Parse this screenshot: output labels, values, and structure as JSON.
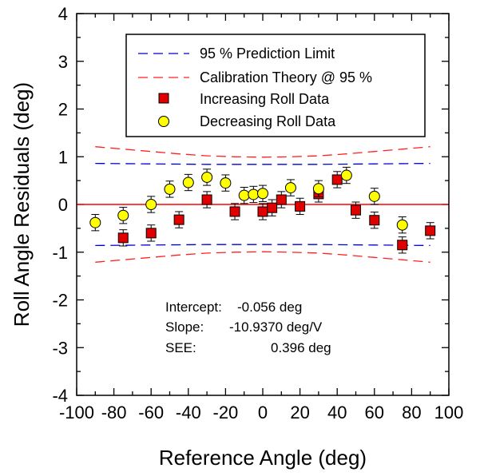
{
  "chart_data": {
    "type": "scatter",
    "xlabel": "Reference Angle (deg)",
    "ylabel": "Roll Angle Residuals (deg)",
    "xlim": [
      -100,
      100
    ],
    "ylim": [
      -4,
      4
    ],
    "x_ticks": [
      -100,
      -80,
      -60,
      -40,
      -20,
      0,
      20,
      40,
      60,
      80,
      100
    ],
    "y_ticks": [
      -4,
      -3,
      -2,
      -1,
      0,
      1,
      2,
      3,
      4
    ],
    "x_tick_labels": [
      "-100",
      "-80",
      "-60",
      "-40",
      "-20",
      "0",
      "20",
      "40",
      "60",
      "80",
      "100"
    ],
    "y_tick_labels": [
      "-4",
      "-3",
      "-2",
      "-1",
      "0",
      "1",
      "2",
      "3",
      "4"
    ],
    "grid": false,
    "legend_position": "top-center",
    "series": [
      {
        "name": "95 % Prediction Limit",
        "kind": "dashed-line",
        "color": "#0000cc",
        "x": [
          -90,
          -60,
          -30,
          0,
          30,
          60,
          90
        ],
        "upper": [
          0.86,
          0.85,
          0.84,
          0.84,
          0.84,
          0.85,
          0.86
        ],
        "lower": [
          -0.86,
          -0.85,
          -0.84,
          -0.84,
          -0.84,
          -0.85,
          -0.86
        ]
      },
      {
        "name": "Calibration Theory @ 95 %",
        "kind": "dashed-line",
        "color": "#ff2020",
        "x": [
          -90,
          -75,
          -60,
          -45,
          -30,
          -15,
          0,
          15,
          30,
          45,
          60,
          75,
          90
        ],
        "upper": [
          1.21,
          1.16,
          1.11,
          1.06,
          1.02,
          1.0,
          0.99,
          1.0,
          1.02,
          1.06,
          1.11,
          1.16,
          1.21
        ],
        "lower": [
          -1.21,
          -1.16,
          -1.11,
          -1.06,
          -1.02,
          -1.0,
          -0.99,
          -1.0,
          -1.02,
          -1.06,
          -1.11,
          -1.16,
          -1.21
        ]
      },
      {
        "name": "Increasing Roll Data",
        "kind": "square",
        "color": "#e00000",
        "error": 0.17,
        "x": [
          -75,
          -60,
          -45,
          -30,
          -15,
          0,
          5,
          10,
          20,
          30,
          40,
          50,
          60,
          75,
          90
        ],
        "y": [
          -0.7,
          -0.6,
          -0.32,
          0.1,
          -0.15,
          -0.15,
          -0.07,
          0.1,
          -0.04,
          0.22,
          0.52,
          -0.12,
          -0.33,
          -0.85,
          -0.55
        ]
      },
      {
        "name": "Decreasing Roll Data",
        "kind": "circle",
        "color": "#ffff00",
        "error": 0.17,
        "x": [
          -90,
          -75,
          -60,
          -50,
          -40,
          -30,
          -20,
          -10,
          -5,
          0,
          15,
          30,
          45,
          60,
          75
        ],
        "y": [
          -0.38,
          -0.23,
          0.0,
          0.32,
          0.46,
          0.57,
          0.45,
          0.19,
          0.21,
          0.23,
          0.35,
          0.33,
          0.61,
          0.17,
          -0.43
        ]
      },
      {
        "name": "",
        "kind": "zero-line",
        "color": "#ff0000",
        "y": 0
      }
    ],
    "annotations": [
      {
        "label": "Intercept:",
        "value": "-0.056 deg"
      },
      {
        "label": "Slope:",
        "value": "-10.9370 deg/V"
      },
      {
        "label": "SEE:",
        "value": "0.396 deg"
      }
    ]
  }
}
